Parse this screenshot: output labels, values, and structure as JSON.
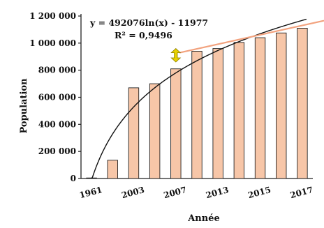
{
  "chart_data": {
    "type": "bar",
    "title": "",
    "xlabel": "Année",
    "ylabel": "Population",
    "ylim": [
      0,
      1200000
    ],
    "yticks": [
      "0",
      "200 000",
      "400 000",
      "600 000",
      "800 000",
      "1 000 000",
      "1 200 000"
    ],
    "ytick_values": [
      0,
      200000,
      400000,
      600000,
      800000,
      1000000,
      1200000
    ],
    "x_bar_index": [
      1,
      2,
      3,
      4,
      5,
      6,
      7,
      8,
      9,
      10,
      11
    ],
    "values": [
      2500,
      135000,
      670000,
      700000,
      810000,
      940000,
      960000,
      1005000,
      1040000,
      1075000,
      1110000
    ],
    "x_tick_labels": [
      {
        "text": "1961",
        "bar_index": 1
      },
      {
        "text": "2003",
        "bar_index": 3
      },
      {
        "text": "2007",
        "bar_index": 5
      },
      {
        "text": "2013",
        "bar_index": 7
      },
      {
        "text": "2015",
        "bar_index": 9
      },
      {
        "text": "2017",
        "bar_index": 11
      }
    ],
    "bar_color": "#F7C6A8",
    "bar_stroke": "#222222",
    "trendline": {
      "type": "logarithmic",
      "a": 492076,
      "b": -11977,
      "color": "#111111",
      "equation": "y = 492076ln(x) - 11977",
      "r2_label": "R² = 0,9496"
    },
    "tangent_line": {
      "color": "#F2A27E",
      "x_start": 5.2,
      "y_start": 930000,
      "x_end": 12,
      "y_end": 1165000
    },
    "gap_marker": {
      "color": "#E8D100",
      "outline": "#8a7d00",
      "x": 5.0,
      "y_low": 860000,
      "y_high": 960000
    },
    "grid": false,
    "legend": "none"
  }
}
